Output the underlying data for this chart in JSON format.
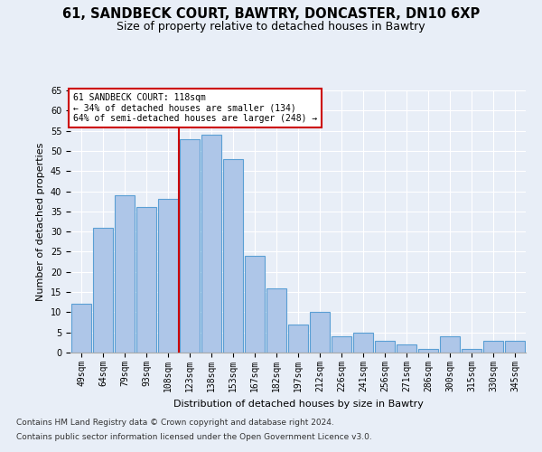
{
  "title_line1": "61, SANDBECK COURT, BAWTRY, DONCASTER, DN10 6XP",
  "title_line2": "Size of property relative to detached houses in Bawtry",
  "xlabel": "Distribution of detached houses by size in Bawtry",
  "ylabel": "Number of detached properties",
  "categories": [
    "49sqm",
    "64sqm",
    "79sqm",
    "93sqm",
    "108sqm",
    "123sqm",
    "138sqm",
    "153sqm",
    "167sqm",
    "182sqm",
    "197sqm",
    "212sqm",
    "226sqm",
    "241sqm",
    "256sqm",
    "271sqm",
    "286sqm",
    "300sqm",
    "315sqm",
    "330sqm",
    "345sqm"
  ],
  "values": [
    12,
    31,
    39,
    36,
    38,
    53,
    54,
    48,
    24,
    16,
    7,
    10,
    4,
    5,
    3,
    2,
    1,
    4,
    1,
    3,
    3
  ],
  "bar_color": "#aec6e8",
  "bar_edge_color": "#5a9fd4",
  "ylim": [
    0,
    65
  ],
  "yticks": [
    0,
    5,
    10,
    15,
    20,
    25,
    30,
    35,
    40,
    45,
    50,
    55,
    60,
    65
  ],
  "vline_x": 4.5,
  "vline_color": "#cc0000",
  "annotation_box_text": "61 SANDBECK COURT: 118sqm\n← 34% of detached houses are smaller (134)\n64% of semi-detached houses are larger (248) →",
  "annotation_box_color": "#cc0000",
  "footer_line1": "Contains HM Land Registry data © Crown copyright and database right 2024.",
  "footer_line2": "Contains public sector information licensed under the Open Government Licence v3.0.",
  "background_color": "#e8eef7",
  "plot_bg_color": "#e8eef7",
  "grid_color": "#ffffff",
  "title_fontsize": 10.5,
  "subtitle_fontsize": 9,
  "axis_label_fontsize": 8,
  "tick_fontsize": 7,
  "footer_fontsize": 6.5
}
